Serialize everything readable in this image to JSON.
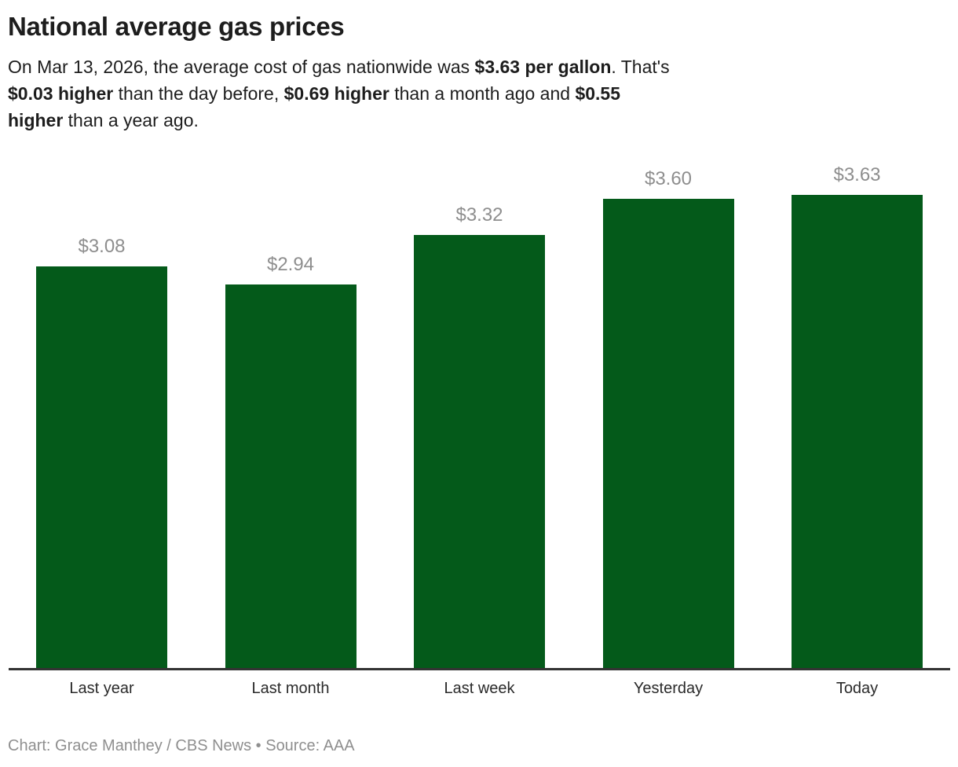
{
  "header": {
    "title": "National average gas prices",
    "subtitle_text": "On Mar 13, 2026, the average cost of gas nationwide was $3.63 per gallon. That's $0.03 higher than the day before, $0.69 higher than a month ago and $0.55 higher than a year ago.",
    "subtitle_lines": [
      [
        {
          "text": "On Mar 13, 2026, the average cost of gas nationwide was ",
          "bold": false
        },
        {
          "text": "$3.63 per gallon",
          "bold": true
        },
        {
          "text": ". That's",
          "bold": false
        }
      ],
      [
        {
          "text": "$0.03 higher",
          "bold": true
        },
        {
          "text": " than the day before, ",
          "bold": false
        },
        {
          "text": "$0.69 higher",
          "bold": true
        },
        {
          "text": " than a month ago and ",
          "bold": false
        },
        {
          "text": "$0.55",
          "bold": true
        }
      ],
      [
        {
          "text": "higher",
          "bold": true
        },
        {
          "text": " than a year ago.",
          "bold": false
        }
      ]
    ]
  },
  "chart_data": {
    "type": "bar",
    "title": "National average gas prices",
    "categories": [
      "Last year",
      "Last month",
      "Last week",
      "Yesterday",
      "Today"
    ],
    "values": [
      3.08,
      2.94,
      3.32,
      3.6,
      3.63
    ],
    "value_labels": [
      "$3.08",
      "$2.94",
      "$3.32",
      "$3.60",
      "$3.63"
    ],
    "xlabel": "",
    "ylabel": "",
    "ylim": [
      0,
      3.63
    ],
    "grid": false,
    "legend": "none",
    "bar_color": "#045a1a",
    "value_label_color": "#8e8e8e",
    "axis_line_color": "#333333"
  },
  "footer": {
    "credit": "Chart: Grace Manthey / CBS News • Source: AAA"
  }
}
